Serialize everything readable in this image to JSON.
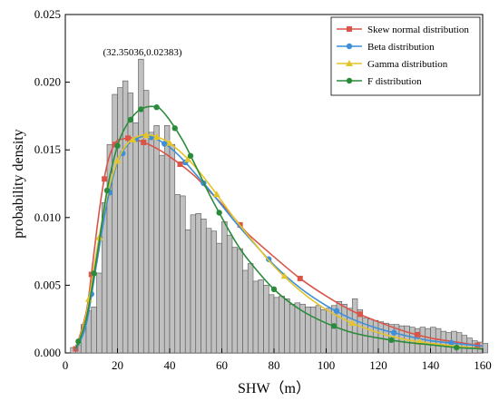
{
  "chart_data": {
    "type": "bar",
    "xlabel": "SHW（m）",
    "ylabel": "probability density",
    "xlim": [
      0,
      160
    ],
    "ylim": [
      0,
      0.025
    ],
    "xticks": [
      0,
      20,
      40,
      60,
      80,
      100,
      120,
      140,
      160
    ],
    "yticks": [
      0.0,
      0.005,
      0.01,
      0.015,
      0.02,
      0.025
    ],
    "ytick_labels": [
      "0.000",
      "0.005",
      "0.010",
      "0.015",
      "0.020",
      "0.025"
    ],
    "grid": false,
    "legend_position": "top-right",
    "annotation": {
      "text": "(32.35036,0.02383)",
      "x": 32.35036,
      "y": 0.02383
    },
    "histogram": {
      "bin_start": 2,
      "bin_width": 2,
      "color": "#c0c0c0",
      "edge_color": "#555555",
      "values": [
        0.0004,
        0.0006,
        0.0021,
        0.0031,
        0.0034,
        0.0059,
        0.0111,
        0.0154,
        0.0191,
        0.0196,
        0.0201,
        0.0192,
        0.017,
        0.0217,
        0.0194,
        0.0163,
        0.0168,
        0.0146,
        0.0168,
        0.0154,
        0.0117,
        0.0116,
        0.0091,
        0.0102,
        0.0103,
        0.0099,
        0.0092,
        0.009,
        0.0081,
        0.0097,
        0.0087,
        0.0078,
        0.0077,
        0.0061,
        0.0066,
        0.0053,
        0.0054,
        0.005,
        0.0043,
        0.0041,
        0.0042,
        0.004,
        0.0036,
        0.0037,
        0.0036,
        0.0034,
        0.0034,
        0.0035,
        0.0032,
        0.0033,
        0.0035,
        0.0038,
        0.0036,
        0.0033,
        0.004,
        0.0032,
        0.0026,
        0.0025,
        0.0024,
        0.0023,
        0.0022,
        0.0021,
        0.0021,
        0.002,
        0.002,
        0.0019,
        0.0018,
        0.0019,
        0.0018,
        0.0019,
        0.0018,
        0.0016,
        0.0015,
        0.0016,
        0.0015,
        0.0013,
        0.0011,
        0.0009,
        0.0008,
        0.0007
      ]
    },
    "series": [
      {
        "name": "Skew normal distribution",
        "color": "#d9554a",
        "marker": "square",
        "x": [
          4,
          8,
          10,
          12,
          14,
          16,
          18,
          20,
          22,
          25,
          28,
          32,
          36,
          40,
          45,
          50,
          55,
          60,
          65,
          70,
          80,
          90,
          100,
          110,
          120,
          130,
          140,
          150,
          160
        ],
        "y": [
          0.0003,
          0.003,
          0.0058,
          0.009,
          0.0118,
          0.0139,
          0.0151,
          0.0157,
          0.0158,
          0.0159,
          0.0157,
          0.0154,
          0.015,
          0.0145,
          0.0138,
          0.013,
          0.012,
          0.011,
          0.0099,
          0.0088,
          0.0071,
          0.0055,
          0.0042,
          0.0031,
          0.0023,
          0.0016,
          0.0011,
          0.0008,
          0.0005
        ],
        "marker_x": [
          4,
          10,
          15,
          19,
          24,
          30,
          44,
          67,
          90,
          113,
          135,
          158
        ]
      },
      {
        "name": "Beta distribution",
        "color": "#3c8fd8",
        "marker": "circle",
        "x": [
          4,
          8,
          12,
          16,
          20,
          24,
          28,
          32,
          36,
          40,
          45,
          50,
          55,
          60,
          65,
          70,
          80,
          90,
          100,
          110,
          120,
          130,
          140,
          150,
          160
        ],
        "y": [
          0.0002,
          0.0021,
          0.0066,
          0.0111,
          0.0141,
          0.0154,
          0.0159,
          0.016,
          0.0157,
          0.0152,
          0.0143,
          0.0132,
          0.0121,
          0.0109,
          0.0097,
          0.0086,
          0.0065,
          0.0048,
          0.0035,
          0.0025,
          0.0018,
          0.0013,
          0.0009,
          0.0007,
          0.0005
        ],
        "marker_x": [
          10,
          17,
          22,
          27,
          33,
          38,
          46,
          53,
          78,
          104,
          126,
          148
        ]
      },
      {
        "name": "Gamma distribution",
        "color": "#e3c42a",
        "marker": "triangle",
        "x": [
          4,
          8,
          12,
          16,
          20,
          24,
          28,
          32,
          36,
          40,
          45,
          50,
          55,
          60,
          65,
          70,
          80,
          90,
          100,
          110,
          120,
          130,
          140,
          150,
          160
        ],
        "y": [
          0.0003,
          0.0028,
          0.0075,
          0.0116,
          0.0142,
          0.0155,
          0.016,
          0.0161,
          0.0159,
          0.0155,
          0.0147,
          0.0137,
          0.0125,
          0.0112,
          0.0099,
          0.0087,
          0.0064,
          0.0046,
          0.0032,
          0.0022,
          0.0015,
          0.001,
          0.0007,
          0.0005,
          0.0003
        ],
        "marker_x": [
          9,
          13,
          20,
          26,
          31,
          35,
          40,
          47,
          58,
          84,
          110,
          136
        ]
      },
      {
        "name": "F distribution",
        "color": "#2a8c3a",
        "marker": "circle",
        "x": [
          4,
          8,
          12,
          16,
          20,
          24,
          28,
          30,
          32,
          34,
          36,
          40,
          45,
          50,
          55,
          60,
          65,
          70,
          80,
          90,
          100,
          110,
          120,
          130,
          140,
          150,
          160
        ],
        "y": [
          0.0003,
          0.0025,
          0.007,
          0.012,
          0.0153,
          0.017,
          0.0179,
          0.0181,
          0.0182,
          0.0182,
          0.0181,
          0.0172,
          0.0157,
          0.0138,
          0.0118,
          0.01,
          0.0083,
          0.0069,
          0.0047,
          0.0032,
          0.0022,
          0.0015,
          0.0011,
          0.0008,
          0.0006,
          0.0004,
          0.0003
        ],
        "marker_x": [
          5,
          11,
          16,
          20,
          25,
          29,
          35,
          42,
          48,
          59,
          80,
          103,
          125,
          150
        ]
      }
    ]
  }
}
